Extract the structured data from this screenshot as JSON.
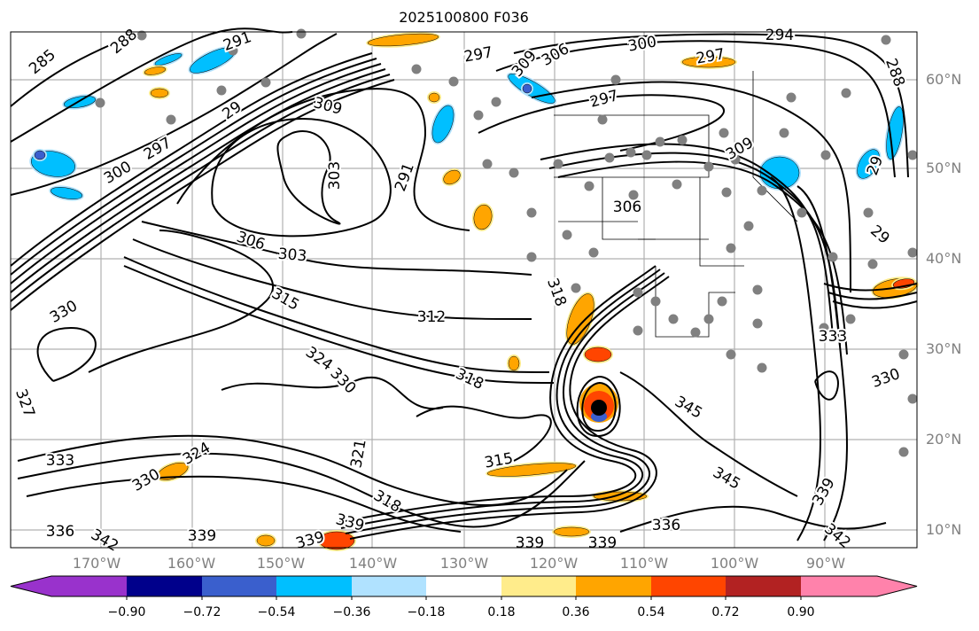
{
  "title": "2025100800 F036",
  "lat_labels": [
    "60°N",
    "50°N",
    "40°N",
    "30°N",
    "20°N",
    "10°N"
  ],
  "lon_labels": [
    "170°W",
    "160°W",
    "150°W",
    "140°W",
    "130°W",
    "120°W",
    "110°W",
    "100°W",
    "90°W"
  ],
  "contour_labels": [
    "285",
    "288",
    "291",
    "29",
    "297",
    "300",
    "309",
    "303",
    "291",
    "306",
    "303",
    "315",
    "312",
    "330",
    "327",
    "324",
    "330",
    "318",
    "333",
    "324",
    "330",
    "321",
    "318",
    "336",
    "342",
    "339",
    "339",
    "339",
    "297",
    "309",
    "306",
    "300",
    "297",
    "297",
    "294",
    "288",
    "309",
    "306",
    "29",
    "29",
    "318",
    "315",
    "336",
    "339",
    "339",
    "345",
    "345",
    "333",
    "330",
    "339",
    "342"
  ],
  "colorbar": {
    "colors": [
      "#9932cc",
      "#00008b",
      "#3a5fcd",
      "#00bfff",
      "#b0e2ff",
      "#ffffff",
      "#ffec8b",
      "#ffa500",
      "#ff4500",
      "#b22222",
      "#ff82ab"
    ],
    "ticks": [
      "−0.90",
      "−0.72",
      "−0.54",
      "−0.36",
      "−0.18",
      "0.18",
      "0.36",
      "0.54",
      "0.72",
      "0.90"
    ]
  }
}
